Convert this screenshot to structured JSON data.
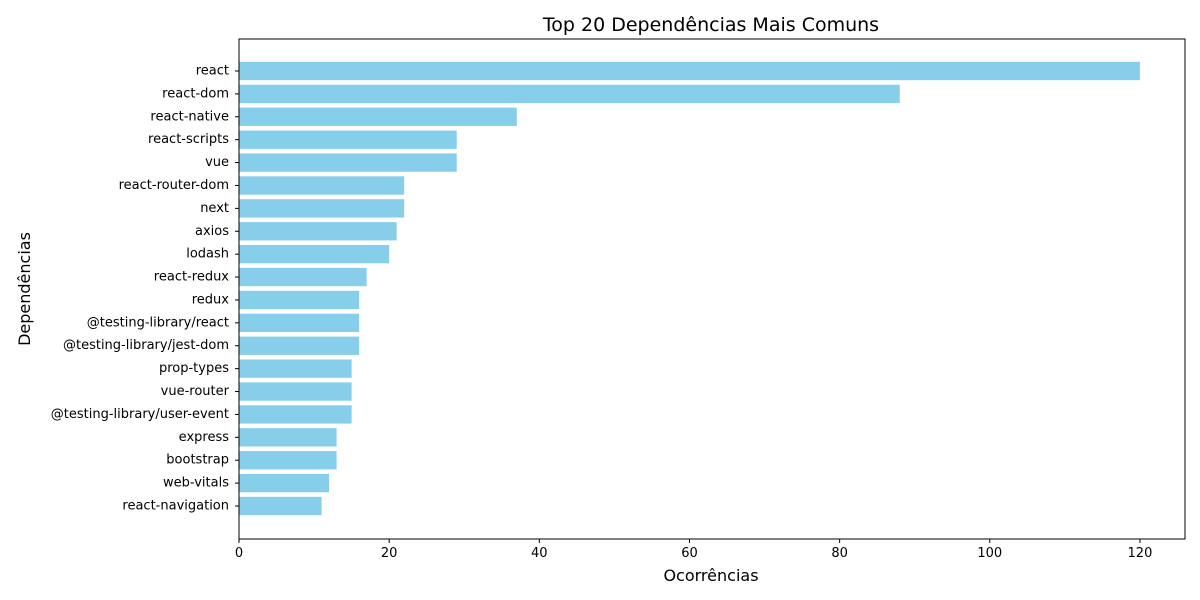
{
  "chart_data": {
    "type": "bar",
    "orientation": "horizontal",
    "title": "Top 20 Dependências Mais Comuns",
    "xlabel": "Ocorrências",
    "ylabel": "Dependências",
    "xlim": [
      0,
      126
    ],
    "xticks": [
      0,
      20,
      40,
      60,
      80,
      100,
      120
    ],
    "grid": false,
    "bar_color": "#87ceeb",
    "categories": [
      "react",
      "react-dom",
      "react-native",
      "react-scripts",
      "vue",
      "react-router-dom",
      "next",
      "axios",
      "lodash",
      "react-redux",
      "redux",
      "@testing-library/react",
      "@testing-library/jest-dom",
      "prop-types",
      "vue-router",
      "@testing-library/user-event",
      "express",
      "bootstrap",
      "web-vitals",
      "react-navigation"
    ],
    "values": [
      120,
      88,
      37,
      29,
      29,
      22,
      22,
      21,
      20,
      17,
      16,
      16,
      16,
      15,
      15,
      15,
      13,
      13,
      12,
      11
    ]
  }
}
